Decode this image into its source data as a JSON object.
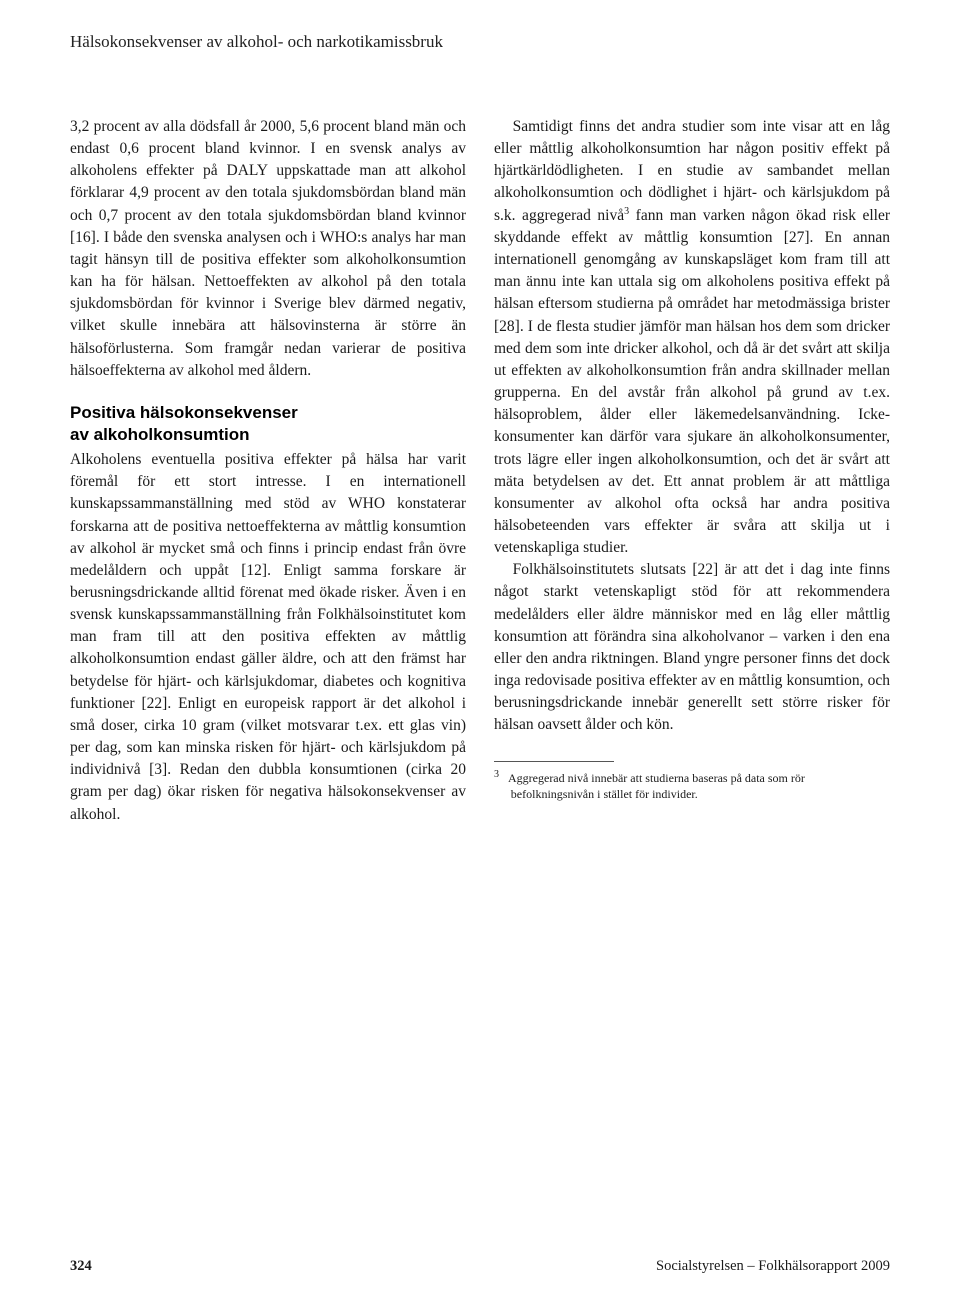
{
  "header": {
    "running_title": "Hälsokonsekvenser av alkohol- och narkotikamissbruk"
  },
  "left_column": {
    "para1": "3,2 procent av alla dödsfall år 2000, 5,6 procent bland män och endast 0,6 procent bland kvinnor. I en svensk analys av alkoholens effekter på DALY uppskattade man att alkohol förklarar 4,9 procent av den totala sjukdomsbördan bland män och 0,7 procent av den totala sjukdomsbördan bland kvinnor [16]. I både den svenska analysen och i WHO:s analys har man tagit hänsyn till de positiva effekter som alkoholkonsumtion kan ha för hälsan. Nettoeffekten av alkohol på den totala sjukdomsbördan för kvinnor i Sverige blev därmed negativ, vilket skulle innebära att hälsovinsterna är större än hälsoförlusterna. Som framgår nedan varierar de positiva hälsoeffekterna av alkohol med åldern.",
    "heading_line1": "Positiva hälsokonsekvenser",
    "heading_line2": "av alkoholkonsumtion",
    "para2": "Alkoholens eventuella positiva effekter på hälsa har varit föremål för ett stort intresse. I en internationell kunskapssammanställning med stöd av WHO konstaterar forskarna att de positiva nettoeffekterna av måttlig konsumtion av alkohol är mycket små och finns i princip endast från övre medelåldern och uppåt [12]. Enligt samma forskare är berusningsdrickande alltid förenat med ökade risker. Även i en svensk kunskapssammanställning från Folkhälsoinstitutet kom man fram till att den positiva effekten av måttlig alkoholkonsumtion endast gäller äldre, och att den främst har betydelse för hjärt- och kärlsjukdomar, diabetes och kognitiva funktioner [22]. Enligt en europeisk rapport är det alkohol i små doser, cirka 10 gram (vilket motsvarar t.ex. ett glas vin) per dag, som kan minska risken för hjärt- och kärlsjukdom på individnivå [3]. Redan den dubbla konsumtionen (cirka 20 gram per dag) ökar risken för negativa hälsokonsekvenser av alkohol."
  },
  "right_column": {
    "para1_pre": "Samtidigt finns det andra studier som inte visar att en låg eller måttlig alkoholkonsumtion har någon positiv effekt på hjärtkärldödligheten. I en studie av sambandet mellan alkoholkonsumtion och dödlighet i hjärt- och kärlsjukdom på s.k. aggregerad nivå",
    "para1_sup": "3",
    "para1_post": " fann man varken någon ökad risk eller skyddande effekt av måttlig konsumtion [27]. En annan internationell genomgång av kunskapsläget kom fram till att man ännu inte kan uttala sig om alkoholens positiva effekt på hälsan eftersom studierna på området har metodmässiga brister [28]. I de flesta studier jämför man hälsan hos dem som dricker med dem som inte dricker alkohol, och då är det svårt att skilja ut effekten av alkoholkonsumtion från andra skillnader mellan grupperna. En del avstår från alkohol på grund av t.ex. hälsoproblem, ålder eller läkemedelsanvändning. Icke-konsumenter kan därför vara sjukare än alkoholkonsumenter, trots lägre eller ingen alkoholkonsumtion, och det är svårt att mäta betydelsen av det. Ett annat problem är att måttliga konsumenter av alkohol ofta också har andra positiva hälsobeteenden vars effekter är svåra att skilja ut i vetenskapliga studier.",
    "para2": "Folkhälsoinstitutets slutsats [22] är att det i dag inte finns något starkt vetenskapligt stöd för att rekommendera medelålders eller äldre människor med en låg eller måttlig konsumtion att förändra sina alkoholvanor – varken i den ena eller den andra riktningen. Bland yngre personer finns det dock inga redovisade positiva effekter av en måttlig konsumtion, och berusningsdrickande innebär generellt sett större risker för hälsan oavsett ålder och kön.",
    "footnote_num": "3",
    "footnote_text": "Aggregerad nivå innebär att studierna baseras på data som rör befolkningsnivån i stället för individer."
  },
  "footer": {
    "page_number": "324",
    "source": "Socialstyrelsen – Folkhälsorapport 2009"
  }
}
